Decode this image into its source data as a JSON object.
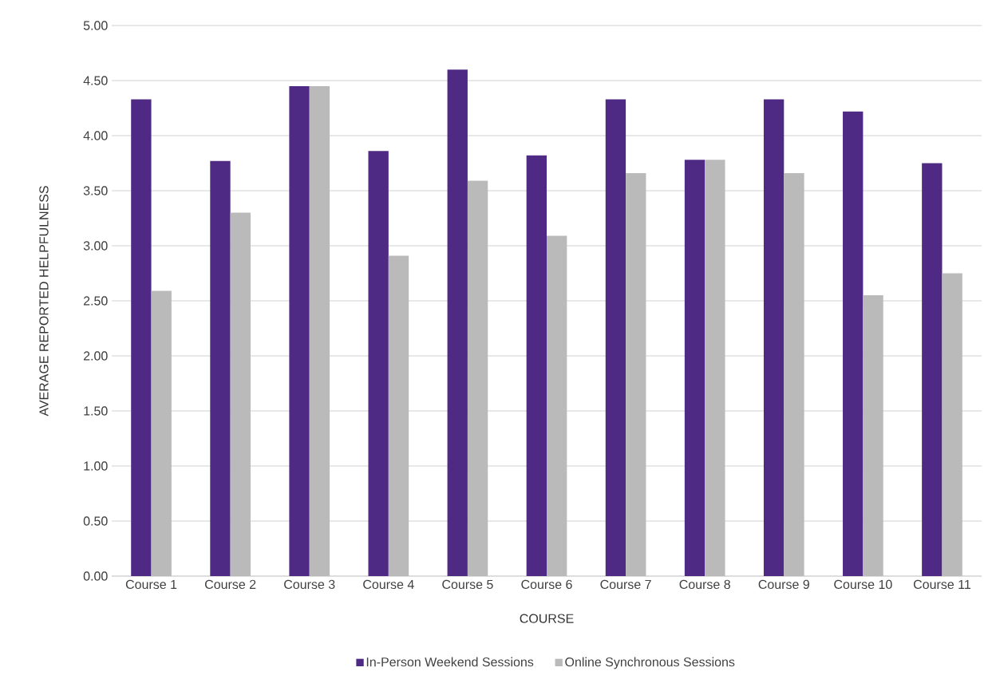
{
  "chart_data": {
    "type": "bar",
    "xlabel": "COURSE",
    "ylabel": "AVERAGE REPORTED HELPFULNESS",
    "categories": [
      "Course 1",
      "Course 2",
      "Course 3",
      "Course 4",
      "Course 5",
      "Course 6",
      "Course 7",
      "Course 8",
      "Course 9",
      "Course 10",
      "Course 11"
    ],
    "series": [
      {
        "name": "In-Person Weekend Sessions",
        "color": "#4e2a84",
        "values": [
          4.33,
          3.77,
          4.45,
          3.86,
          4.6,
          3.82,
          4.33,
          3.78,
          4.33,
          4.22,
          3.75
        ]
      },
      {
        "name": "Online Synchronous Sessions",
        "color": "#bababa",
        "values": [
          2.59,
          3.3,
          4.45,
          2.91,
          3.59,
          3.09,
          3.66,
          3.78,
          3.66,
          2.55,
          2.75
        ]
      }
    ],
    "ylim": [
      0,
      5
    ],
    "yticks": [
      {
        "value": 0,
        "label": "0.00"
      },
      {
        "value": 0.5,
        "label": "0.50"
      },
      {
        "value": 1,
        "label": "1.00"
      },
      {
        "value": 1.5,
        "label": "1.50"
      },
      {
        "value": 2,
        "label": "2.00"
      },
      {
        "value": 2.5,
        "label": "2.50"
      },
      {
        "value": 3,
        "label": "3.00"
      },
      {
        "value": 3.5,
        "label": "3.50"
      },
      {
        "value": 4,
        "label": "4.00"
      },
      {
        "value": 4.5,
        "label": "4.50"
      },
      {
        "value": 5,
        "label": "5.00"
      }
    ],
    "grid": "y",
    "legend": "bottom"
  }
}
